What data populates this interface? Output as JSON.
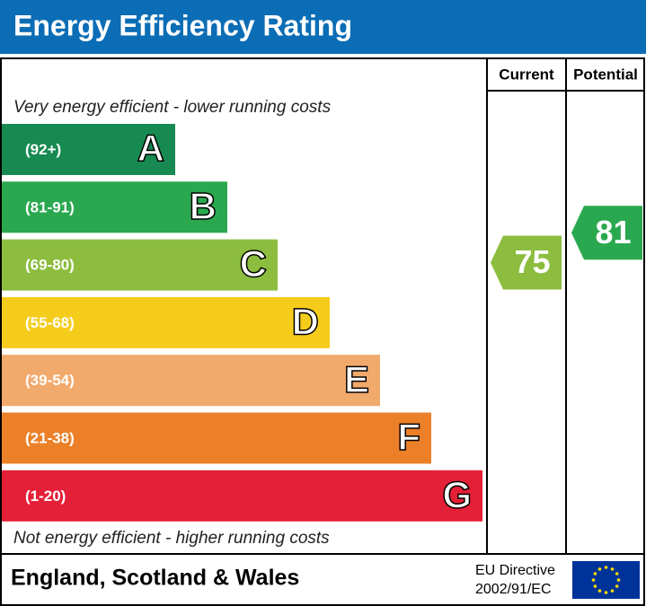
{
  "header": {
    "title": "Energy Efficiency Rating"
  },
  "columns": [
    "Current",
    "Potential"
  ],
  "top_note": "Very energy efficient - lower running costs",
  "bottom_note": "Not energy efficient - higher running costs",
  "bands": [
    {
      "range": "(92+)",
      "letter": "A",
      "color": "#178a51"
    },
    {
      "range": "(81-91)",
      "letter": "B",
      "color": "#2aa84f"
    },
    {
      "range": "(69-80)",
      "letter": "C",
      "color": "#8cbd3f"
    },
    {
      "range": "(55-68)",
      "letter": "D",
      "color": "#f6cc1c"
    },
    {
      "range": "(39-54)",
      "letter": "E",
      "color": "#f2a96c"
    },
    {
      "range": "(21-38)",
      "letter": "F",
      "color": "#ec8028"
    },
    {
      "range": "(1-20)",
      "letter": "G",
      "color": "#e42038"
    }
  ],
  "current": {
    "value": 75
  },
  "potential": {
    "value": 81
  },
  "footer": {
    "region": "England, Scotland & Wales",
    "directive": [
      "EU Directive",
      "2002/91/EC"
    ]
  }
}
